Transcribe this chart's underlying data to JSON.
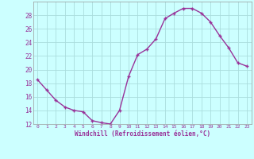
{
  "x": [
    0,
    1,
    2,
    3,
    4,
    5,
    6,
    7,
    8,
    9,
    10,
    11,
    12,
    13,
    14,
    15,
    16,
    17,
    18,
    19,
    20,
    21,
    22,
    23
  ],
  "y": [
    18.5,
    17.0,
    15.5,
    14.5,
    14.0,
    13.8,
    12.5,
    12.2,
    12.0,
    14.0,
    19.0,
    22.2,
    23.0,
    24.5,
    27.5,
    28.3,
    29.0,
    29.0,
    28.3,
    27.0,
    25.0,
    23.2,
    21.0,
    20.5
  ],
  "line_color": "#993399",
  "marker": "+",
  "bg_color": "#ccffff",
  "grid_color": "#aadddd",
  "xlabel": "Windchill (Refroidissement éolien,°C)",
  "xlabel_color": "#993399",
  "tick_color": "#993399",
  "ylim": [
    12,
    30
  ],
  "yticks": [
    12,
    14,
    16,
    18,
    20,
    22,
    24,
    26,
    28
  ],
  "xlim": [
    -0.5,
    23.5
  ],
  "xticks": [
    0,
    1,
    2,
    3,
    4,
    5,
    6,
    7,
    8,
    9,
    10,
    11,
    12,
    13,
    14,
    15,
    16,
    17,
    18,
    19,
    20,
    21,
    22,
    23
  ]
}
